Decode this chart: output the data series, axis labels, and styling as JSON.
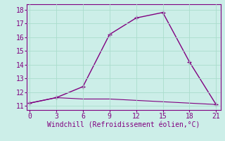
{
  "x": [
    0,
    3,
    6,
    9,
    12,
    15,
    18,
    21
  ],
  "y_upper": [
    11.2,
    11.6,
    12.4,
    16.2,
    17.4,
    17.8,
    14.2,
    11.1
  ],
  "y_lower": [
    11.2,
    11.6,
    11.5,
    11.5,
    11.4,
    11.3,
    11.2,
    11.1
  ],
  "line_color": "#800080",
  "bg_color": "#cceee8",
  "grid_color": "#aaddcc",
  "xlabel": "Windchill (Refroidissement éolien,°C)",
  "xticks": [
    0,
    3,
    6,
    9,
    12,
    15,
    18,
    21
  ],
  "yticks": [
    11,
    12,
    13,
    14,
    15,
    16,
    17,
    18
  ],
  "ylim": [
    10.7,
    18.4
  ],
  "xlim": [
    -0.3,
    21.5
  ]
}
